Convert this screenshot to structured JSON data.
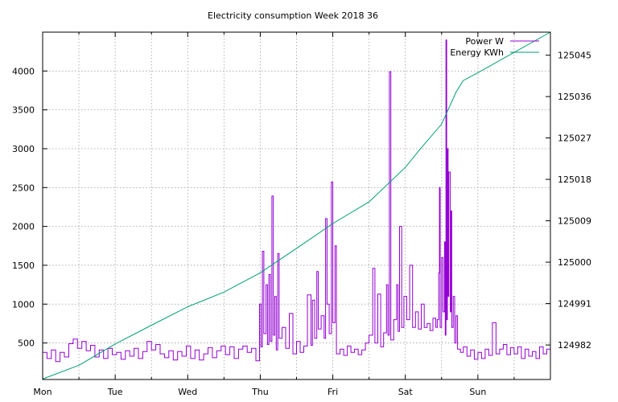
{
  "chart_data": {
    "type": "line",
    "title": "Electricity consumption Week 2018 36",
    "legend_position": "top-right",
    "grid": true,
    "x": {
      "categories": [
        "Mon",
        "Tue",
        "Wed",
        "Thu",
        "Fri",
        "Sat",
        "Sun"
      ],
      "range_days": [
        0,
        7
      ]
    },
    "y_left": {
      "ticks": [
        500,
        1000,
        1500,
        2000,
        2500,
        3000,
        3500,
        4000
      ],
      "range": [
        30,
        4500
      ]
    },
    "y_right": {
      "ticks": [
        124982,
        124991,
        125000,
        125009,
        125018,
        125027,
        125036,
        125045
      ],
      "tick_labels": [
        "124982",
        "124991",
        "125000",
        "125009",
        "125018",
        "125027",
        "125036",
        "125045"
      ],
      "range": [
        124974.5,
        125050
      ]
    },
    "series": [
      {
        "name": "Power W",
        "color": "#9400d3",
        "axis": "left",
        "points": [
          [
            0.0,
            380
          ],
          [
            0.06,
            300
          ],
          [
            0.12,
            410
          ],
          [
            0.18,
            260
          ],
          [
            0.24,
            380
          ],
          [
            0.3,
            320
          ],
          [
            0.36,
            490
          ],
          [
            0.42,
            550
          ],
          [
            0.48,
            430
          ],
          [
            0.54,
            520
          ],
          [
            0.6,
            400
          ],
          [
            0.66,
            470
          ],
          [
            0.72,
            320
          ],
          [
            0.78,
            410
          ],
          [
            0.84,
            300
          ],
          [
            0.9,
            430
          ],
          [
            0.96,
            350
          ],
          [
            1.02,
            380
          ],
          [
            1.08,
            290
          ],
          [
            1.14,
            400
          ],
          [
            1.2,
            330
          ],
          [
            1.26,
            430
          ],
          [
            1.32,
            300
          ],
          [
            1.38,
            390
          ],
          [
            1.44,
            520
          ],
          [
            1.5,
            410
          ],
          [
            1.56,
            480
          ],
          [
            1.62,
            360
          ],
          [
            1.68,
            310
          ],
          [
            1.74,
            400
          ],
          [
            1.8,
            280
          ],
          [
            1.86,
            390
          ],
          [
            1.92,
            330
          ],
          [
            1.98,
            460
          ],
          [
            2.04,
            300
          ],
          [
            2.1,
            410
          ],
          [
            2.16,
            280
          ],
          [
            2.22,
            360
          ],
          [
            2.28,
            440
          ],
          [
            2.34,
            310
          ],
          [
            2.4,
            400
          ],
          [
            2.46,
            460
          ],
          [
            2.52,
            350
          ],
          [
            2.58,
            450
          ],
          [
            2.64,
            300
          ],
          [
            2.7,
            420
          ],
          [
            2.76,
            460
          ],
          [
            2.82,
            380
          ],
          [
            2.88,
            430
          ],
          [
            2.94,
            270
          ],
          [
            2.99,
            1000
          ],
          [
            3.01,
            450
          ],
          [
            3.03,
            1680
          ],
          [
            3.05,
            620
          ],
          [
            3.08,
            1250
          ],
          [
            3.1,
            480
          ],
          [
            3.12,
            1380
          ],
          [
            3.14,
            520
          ],
          [
            3.16,
            2390
          ],
          [
            3.18,
            600
          ],
          [
            3.2,
            1100
          ],
          [
            3.22,
            410
          ],
          [
            3.24,
            1650
          ],
          [
            3.26,
            560
          ],
          [
            3.3,
            700
          ],
          [
            3.35,
            430
          ],
          [
            3.4,
            880
          ],
          [
            3.45,
            360
          ],
          [
            3.5,
            520
          ],
          [
            3.55,
            380
          ],
          [
            3.6,
            460
          ],
          [
            3.65,
            1120
          ],
          [
            3.7,
            470
          ],
          [
            3.72,
            1050
          ],
          [
            3.75,
            560
          ],
          [
            3.78,
            1420
          ],
          [
            3.8,
            680
          ],
          [
            3.84,
            850
          ],
          [
            3.88,
            560
          ],
          [
            3.9,
            2100
          ],
          [
            3.92,
            1000
          ],
          [
            3.95,
            620
          ],
          [
            3.98,
            2570
          ],
          [
            4.0,
            760
          ],
          [
            4.03,
            1750
          ],
          [
            4.05,
            360
          ],
          [
            4.1,
            420
          ],
          [
            4.15,
            340
          ],
          [
            4.2,
            460
          ],
          [
            4.25,
            380
          ],
          [
            4.3,
            420
          ],
          [
            4.35,
            350
          ],
          [
            4.4,
            410
          ],
          [
            4.45,
            500
          ],
          [
            4.5,
            600
          ],
          [
            4.55,
            1460
          ],
          [
            4.58,
            500
          ],
          [
            4.62,
            1130
          ],
          [
            4.66,
            450
          ],
          [
            4.7,
            630
          ],
          [
            4.74,
            1250
          ],
          [
            4.76,
            600
          ],
          [
            4.78,
            3990
          ],
          [
            4.8,
            540
          ],
          [
            4.84,
            800
          ],
          [
            4.88,
            1250
          ],
          [
            4.9,
            650
          ],
          [
            4.92,
            2000
          ],
          [
            4.95,
            700
          ],
          [
            4.98,
            1100
          ],
          [
            5.02,
            800
          ],
          [
            5.06,
            1500
          ],
          [
            5.1,
            700
          ],
          [
            5.14,
            900
          ],
          [
            5.18,
            680
          ],
          [
            5.22,
            1000
          ],
          [
            5.26,
            700
          ],
          [
            5.3,
            750
          ],
          [
            5.34,
            660
          ],
          [
            5.38,
            820
          ],
          [
            5.42,
            700
          ],
          [
            5.44,
            800
          ],
          [
            5.46,
            1400
          ],
          [
            5.47,
            2500
          ],
          [
            5.48,
            700
          ],
          [
            5.5,
            1600
          ],
          [
            5.52,
            900
          ],
          [
            5.54,
            1800
          ],
          [
            5.55,
            600
          ],
          [
            5.56,
            4400
          ],
          [
            5.57,
            800
          ],
          [
            5.58,
            3000
          ],
          [
            5.59,
            1100
          ],
          [
            5.6,
            2700
          ],
          [
            5.62,
            900
          ],
          [
            5.63,
            2200
          ],
          [
            5.64,
            700
          ],
          [
            5.66,
            1100
          ],
          [
            5.68,
            500
          ],
          [
            5.7,
            850
          ],
          [
            5.72,
            420
          ],
          [
            5.76,
            380
          ],
          [
            5.8,
            450
          ],
          [
            5.85,
            330
          ],
          [
            5.9,
            410
          ],
          [
            5.95,
            290
          ],
          [
            6.0,
            380
          ],
          [
            6.05,
            300
          ],
          [
            6.1,
            420
          ],
          [
            6.15,
            340
          ],
          [
            6.2,
            760
          ],
          [
            6.25,
            360
          ],
          [
            6.3,
            420
          ],
          [
            6.35,
            480
          ],
          [
            6.4,
            350
          ],
          [
            6.45,
            440
          ],
          [
            6.5,
            360
          ],
          [
            6.55,
            450
          ],
          [
            6.6,
            300
          ],
          [
            6.65,
            420
          ],
          [
            6.7,
            330
          ],
          [
            6.75,
            390
          ],
          [
            6.8,
            300
          ],
          [
            6.85,
            450
          ],
          [
            6.9,
            360
          ],
          [
            6.95,
            420
          ],
          [
            7.0,
            400
          ]
        ]
      },
      {
        "name": "Energy KWh",
        "color": "#009e73",
        "axis": "right",
        "points": [
          [
            0.0,
            124974.6
          ],
          [
            0.5,
            124977.6
          ],
          [
            1.0,
            124982.2
          ],
          [
            1.5,
            124986.3
          ],
          [
            2.0,
            124990.3
          ],
          [
            2.5,
            124993.5
          ],
          [
            3.0,
            124997.7
          ],
          [
            3.5,
            125003.0
          ],
          [
            4.0,
            125008.4
          ],
          [
            4.5,
            125013.1
          ],
          [
            5.0,
            125020.6
          ],
          [
            5.2,
            125024.5
          ],
          [
            5.5,
            125030.0
          ],
          [
            5.7,
            125037.0
          ],
          [
            5.8,
            125039.5
          ],
          [
            6.0,
            125041.2
          ],
          [
            6.5,
            125045.6
          ],
          [
            7.0,
            125050.3
          ]
        ]
      }
    ]
  }
}
